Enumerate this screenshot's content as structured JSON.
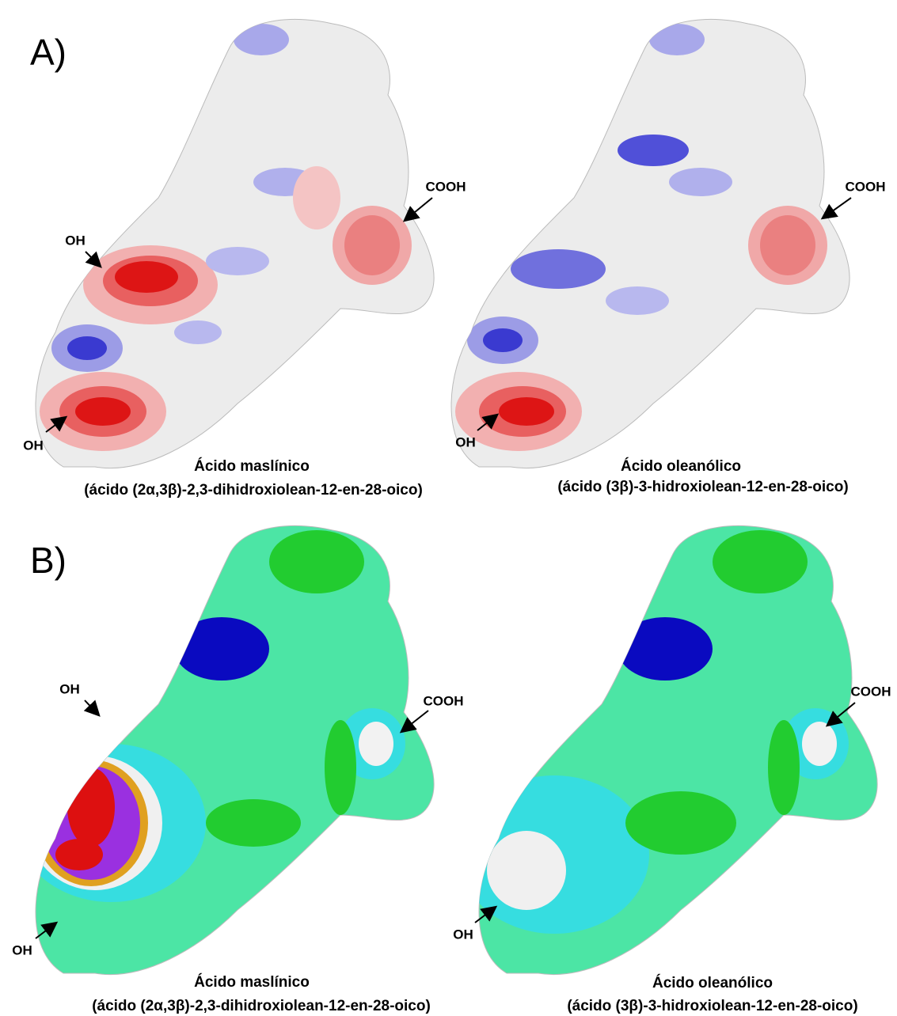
{
  "panels": [
    {
      "label": "A)",
      "molecules": [
        {
          "name": "Ácido maslínico",
          "iupac": "(ácido (2α,3β)-2,3-dihidroxiolean-12-en-28-oico)",
          "annotations": [
            "OH",
            "OH",
            "COOH"
          ]
        },
        {
          "name": "Ácido oleanólico",
          "iupac": "(ácido (3β)-3-hidroxiolean-12-en-28-oico)",
          "annotations": [
            "OH",
            "COOH"
          ]
        }
      ]
    },
    {
      "label": "B)",
      "molecules": [
        {
          "name": "Ácido maslínico",
          "iupac": "(ácido (2α,3β)-2,3-dihidroxiolean-12-en-28-oico)",
          "annotations": [
            "OH",
            "OH",
            "COOH"
          ]
        },
        {
          "name": "Ácido oleanólico",
          "iupac": "(ácido (3β)-3-hidroxiolean-12-en-28-oico)",
          "annotations": [
            "OH",
            "COOH"
          ]
        }
      ]
    }
  ]
}
